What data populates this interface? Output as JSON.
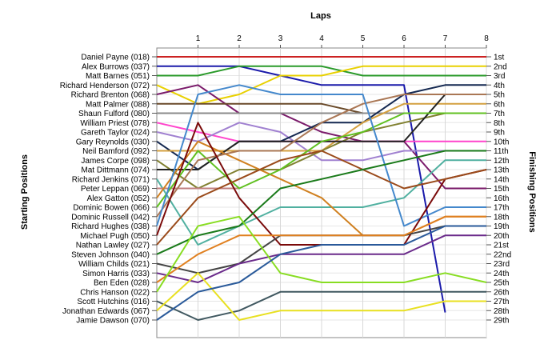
{
  "chart_data": {
    "type": "line",
    "title": "Laps",
    "xlabel": "Laps",
    "ylabel_left": "Starting Positions",
    "ylabel_right": "Finishing Positions",
    "x_ticks": [
      "1",
      "2",
      "3",
      "4",
      "5",
      "6",
      "7",
      "8"
    ],
    "xlim": [
      0,
      8
    ],
    "ylim": [
      1,
      29
    ],
    "positions": [
      "1st",
      "2nd",
      "3rd",
      "4th",
      "5th",
      "6th",
      "7th",
      "8th",
      "9th",
      "10th",
      "11th",
      "12th",
      "13th",
      "14th",
      "15th",
      "16th",
      "17th",
      "18th",
      "19th",
      "20th",
      "21st",
      "22nd",
      "23rd",
      "24th",
      "25th",
      "26th",
      "27th",
      "28th",
      "29th"
    ],
    "drivers": [
      "Daniel Payne (018)",
      "Alex Burrows (037)",
      "Matt Barnes (051)",
      "Richard Henderson (072)",
      "Richard Brenton (068)",
      "Matt Palmer (088)",
      "Shaun Fulford (080)",
      "William Priest (078)",
      "Gareth Taylor (024)",
      "Gary Reynolds (030)",
      "Neil Bamford (092)",
      "James Corpe (098)",
      "Mat Dittmann (074)",
      "Richard Jenkins (071)",
      "Peter Leppan (069)",
      "Alex Gatton (052)",
      "Dominic Bowen (066)",
      "Dominic Russell (042)",
      "Richard Hughes (038)",
      "Michael Pugh (050)",
      "Nathan Lawley (027)",
      "Steven Johnson (040)",
      "William Childs (021)",
      "Simon Harris (033)",
      "Ben Eden (028)",
      "Chris Hanson (022)",
      "Scott Hutchins (016)",
      "Jonathan Edwards (067)",
      "Jamie Dawson (070)"
    ],
    "series": [
      {
        "name": "Daniel Payne (018)",
        "color": "#cc2222",
        "values": [
          1,
          1,
          1,
          1,
          1,
          1,
          1,
          1,
          1
        ]
      },
      {
        "name": "Alex Burrows (037)",
        "color": "#1a1aaa",
        "values": [
          2,
          2,
          2,
          3,
          4,
          4,
          4,
          28.2,
          null
        ]
      },
      {
        "name": "Matt Barnes (051)",
        "color": "#2a9a2a",
        "values": [
          3,
          3,
          2,
          2,
          2,
          3,
          3,
          3,
          3
        ]
      },
      {
        "name": "Richard Henderson (072)",
        "color": "#e8d000",
        "values": [
          4,
          6,
          5,
          3,
          3,
          2,
          2,
          2,
          2
        ]
      },
      {
        "name": "Richard Brenton (068)",
        "color": "#7a1a6a",
        "values": [
          5,
          4,
          7,
          7,
          9,
          10,
          10,
          15,
          15
        ]
      },
      {
        "name": "Matt Palmer (088)",
        "color": "#6a4a2a",
        "values": [
          6,
          6,
          6,
          6,
          6,
          7,
          7,
          7,
          7
        ]
      },
      {
        "name": "Shaun Fulford (080)",
        "color": "#8a8a8a",
        "values": [
          7,
          7,
          7,
          7,
          7,
          7,
          7,
          7,
          7
        ]
      },
      {
        "name": "William Priest (078)",
        "color": "#ff44cc",
        "values": [
          8,
          9,
          10,
          10,
          10,
          10,
          10,
          10,
          10
        ]
      },
      {
        "name": "Gareth Taylor (024)",
        "color": "#a080d0",
        "values": [
          9,
          10,
          8,
          9,
          12,
          12,
          11,
          11,
          11
        ]
      },
      {
        "name": "Gary Reynolds (030)",
        "color": "#142850",
        "values": [
          10,
          13,
          10,
          10,
          8,
          8,
          5,
          4,
          4
        ]
      },
      {
        "name": "Neil Bamford (092)",
        "color": "#d4a040",
        "values": [
          11,
          11,
          11,
          11,
          11,
          8,
          6,
          6,
          6
        ]
      },
      {
        "name": "James Corpe (098)",
        "color": "#808030",
        "values": [
          12,
          15,
          13,
          13,
          11,
          9,
          8,
          7,
          7
        ]
      },
      {
        "name": "Mat Dittmann (074)",
        "color": "#222222",
        "values": [
          13,
          13,
          10,
          10,
          10,
          10,
          10,
          5,
          5
        ]
      },
      {
        "name": "Richard Jenkins (071)",
        "color": "#50b0a0",
        "values": [
          14,
          21,
          19,
          17,
          17,
          17,
          16,
          12,
          12
        ]
      },
      {
        "name": "Peter Leppan (069)",
        "color": "#c08080",
        "values": [
          15,
          15,
          15,
          null,
          null,
          null,
          null,
          null,
          null
        ]
      },
      {
        "name": "Alex Gatton (052)",
        "color": "#d08020",
        "values": [
          16,
          10,
          12,
          14,
          16,
          20,
          20,
          18,
          18
        ]
      },
      {
        "name": "Dominic Bowen (066)",
        "color": "#60c020",
        "values": [
          17,
          11,
          15,
          13,
          10,
          9,
          7,
          7,
          7
        ]
      },
      {
        "name": "Dominic Russell (042)",
        "color": "#aa7755",
        "values": [
          18,
          12,
          11,
          11,
          8,
          6,
          5,
          5,
          5
        ]
      },
      {
        "name": "Richard Hughes (038)",
        "color": "#4488cc",
        "values": [
          19,
          5,
          4,
          5,
          5,
          5,
          19,
          17,
          17
        ]
      },
      {
        "name": "Michael Pugh (050)",
        "color": "#7a0a0a",
        "values": [
          20,
          8,
          16,
          21,
          21,
          21,
          21,
          14,
          13
        ]
      },
      {
        "name": "Nathan Lawley (027)",
        "color": "#9a4a1a",
        "values": [
          21,
          16,
          14,
          12,
          11,
          13,
          15,
          14,
          13
        ]
      },
      {
        "name": "Steven Johnson (040)",
        "color": "#1a7a1a",
        "values": [
          22,
          20,
          19,
          15,
          14,
          13,
          12,
          11,
          11
        ]
      },
      {
        "name": "William Childs (021)",
        "color": "#444444",
        "values": [
          23,
          24,
          23,
          20,
          20,
          20,
          20,
          19,
          19
        ]
      },
      {
        "name": "Simon Harris (033)",
        "color": "#6a2a8a",
        "values": [
          24,
          25,
          23,
          22,
          22,
          22,
          22,
          20,
          20
        ]
      },
      {
        "name": "Ben Eden (028)",
        "color": "#e08020",
        "values": [
          25,
          22,
          20,
          20,
          20,
          20,
          20,
          18,
          18
        ]
      },
      {
        "name": "Chris Hanson (022)",
        "color": "#88dd22",
        "values": [
          26,
          19,
          18,
          24,
          25,
          25,
          25,
          24,
          25
        ]
      },
      {
        "name": "Scott Hutchins (016)",
        "color": "#405860",
        "values": [
          27,
          29,
          28,
          26,
          26,
          26,
          26,
          26,
          26
        ]
      },
      {
        "name": "Jonathan Edwards (067)",
        "color": "#e8e020",
        "values": [
          28,
          24,
          29,
          28,
          28,
          28,
          28,
          27,
          27
        ]
      },
      {
        "name": "Jamie Dawson (070)",
        "color": "#2a5a9a",
        "values": [
          29,
          26,
          25,
          22,
          21,
          21,
          21,
          19,
          19
        ]
      }
    ],
    "grid": true
  }
}
